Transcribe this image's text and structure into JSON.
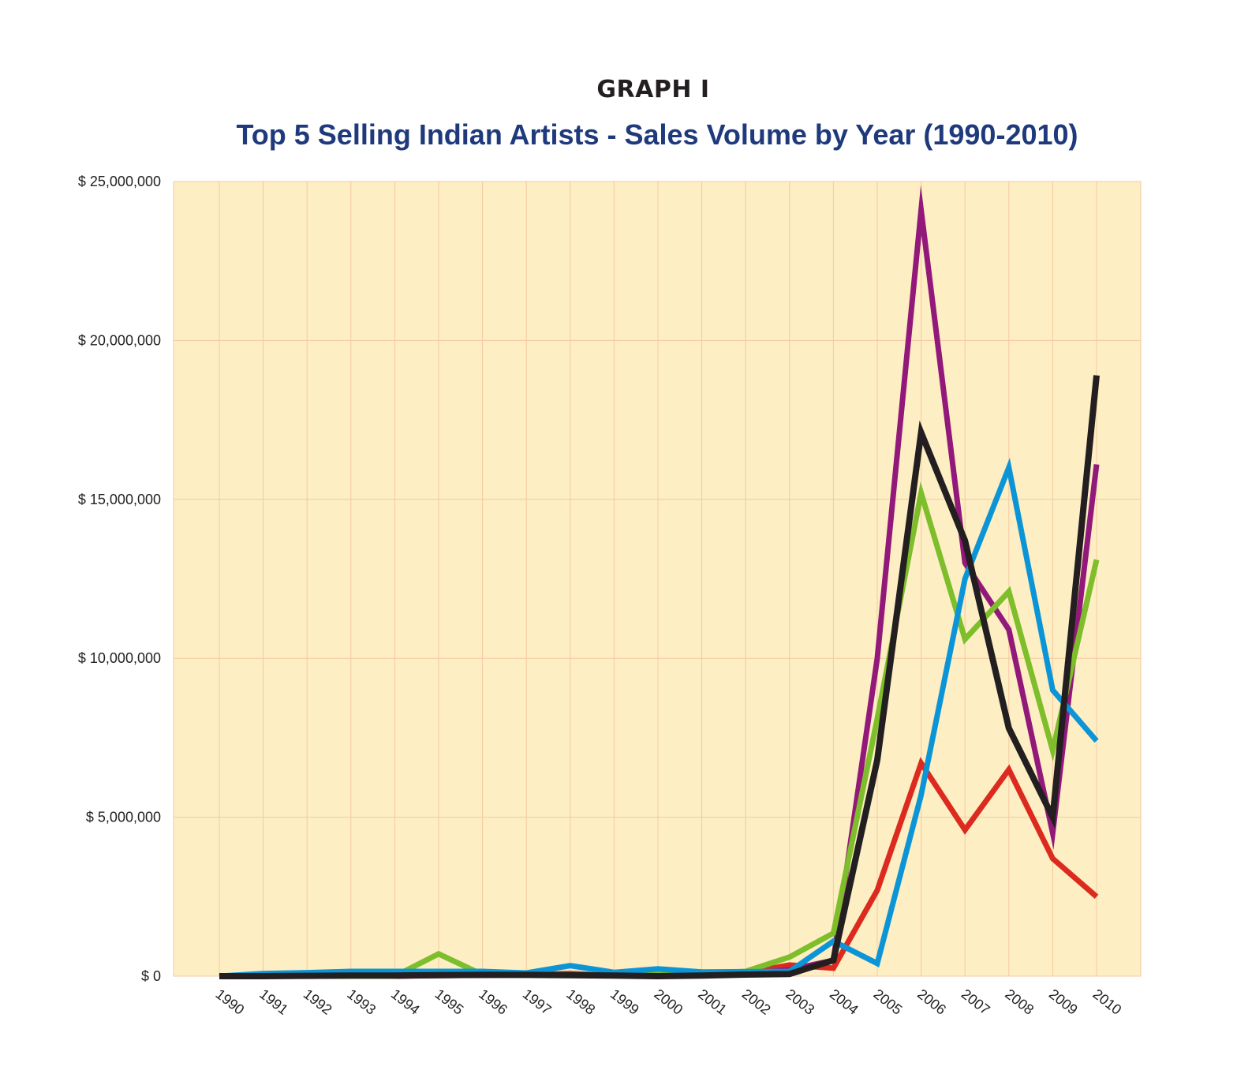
{
  "header": {
    "graph_label": "GRAPH I"
  },
  "chart_data": {
    "type": "line",
    "title": "Top 5 Selling Indian Artists - Sales Volume by Year (1990-2010)",
    "xlabel": "",
    "ylabel": "",
    "x": [
      "1990",
      "1991",
      "1992",
      "1993",
      "1994",
      "1995",
      "1996",
      "1997",
      "1998",
      "1999",
      "2000",
      "2001",
      "2002",
      "2003",
      "2004",
      "2005",
      "2006",
      "2007",
      "2008",
      "2009",
      "2010"
    ],
    "ylim": [
      0,
      25000000
    ],
    "y_ticks": [
      0,
      5000000,
      10000000,
      15000000,
      20000000,
      25000000
    ],
    "y_tick_labels": [
      "$ 0",
      "$ 5,000,000",
      "$ 10,000,000",
      "$ 15,000,000",
      "$ 20,000,000",
      "$ 25,000,000"
    ],
    "grid": true,
    "legend": "none",
    "background_color": "#fdeec4",
    "grid_color": "#f6c9a0",
    "series": [
      {
        "color": "#dc2a1e",
        "values": [
          0,
          0,
          0,
          0,
          0,
          20000,
          30000,
          50000,
          80000,
          30000,
          20000,
          60000,
          100000,
          350000,
          250000,
          2700000,
          6700000,
          4600000,
          6500000,
          3700000,
          2500000
        ]
      },
      {
        "color": "#92197a",
        "values": [
          0,
          0,
          0,
          0,
          0,
          30000,
          30000,
          40000,
          60000,
          40000,
          40000,
          50000,
          80000,
          200000,
          500000,
          10000000,
          24100000,
          13000000,
          10900000,
          4500000,
          16100000
        ]
      },
      {
        "color": "#7dbe2a",
        "values": [
          0,
          0,
          0,
          0,
          0,
          700000,
          50000,
          50000,
          50000,
          50000,
          60000,
          80000,
          150000,
          600000,
          1350000,
          8100000,
          15200000,
          10600000,
          12100000,
          7100000,
          13100000
        ]
      },
      {
        "color": "#0c95d6",
        "values": [
          0,
          80000,
          110000,
          150000,
          150000,
          150000,
          150000,
          100000,
          330000,
          120000,
          230000,
          130000,
          140000,
          150000,
          1100000,
          400000,
          5700000,
          12500000,
          16000000,
          9000000,
          7400000
        ]
      },
      {
        "color": "#231f20",
        "values": [
          0,
          0,
          10000,
          20000,
          20000,
          30000,
          40000,
          40000,
          30000,
          20000,
          0,
          20000,
          50000,
          70000,
          500000,
          6800000,
          17100000,
          13700000,
          7800000,
          5000000,
          18900000
        ]
      }
    ]
  }
}
